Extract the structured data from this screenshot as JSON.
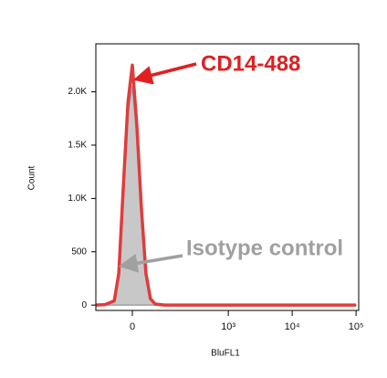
{
  "chart_data": {
    "type": "histogram-overlay",
    "xlabel": "BluFL1",
    "ylabel": "Count",
    "xscale": "biexponential",
    "x": [
      -109,
      -73,
      -44,
      -32,
      -21,
      -10,
      0,
      10,
      21,
      32,
      44,
      58,
      90,
      189,
      1000,
      10000,
      100000
    ],
    "series": [
      {
        "name": "Isotype control",
        "color": "#a0a0a0",
        "fill": "#c8c8c8",
        "values": [
          0,
          3,
          30,
          250,
          1000,
          1800,
          2050,
          1600,
          800,
          250,
          50,
          8,
          0,
          0,
          0,
          0,
          0
        ]
      },
      {
        "name": "CD14-488",
        "color": "#e03c3c",
        "values": [
          0,
          5,
          40,
          300,
          1100,
          1900,
          2250,
          1700,
          900,
          300,
          60,
          10,
          0,
          0,
          0,
          0,
          0
        ]
      }
    ],
    "xlim": [
      -109,
      110000
    ],
    "xticks": [
      0,
      {
        "value": 1000,
        "label": "10³"
      },
      {
        "value": 10000,
        "label": "10⁴"
      },
      {
        "value": 100000,
        "label": "10⁵"
      }
    ],
    "ylim": [
      -50,
      2450
    ],
    "yticks": [
      0,
      500,
      {
        "value": 1000,
        "label": "1.0K"
      },
      {
        "value": 1500,
        "label": "1.5K"
      },
      {
        "value": 2000,
        "label": "2.0K"
      }
    ]
  }
}
